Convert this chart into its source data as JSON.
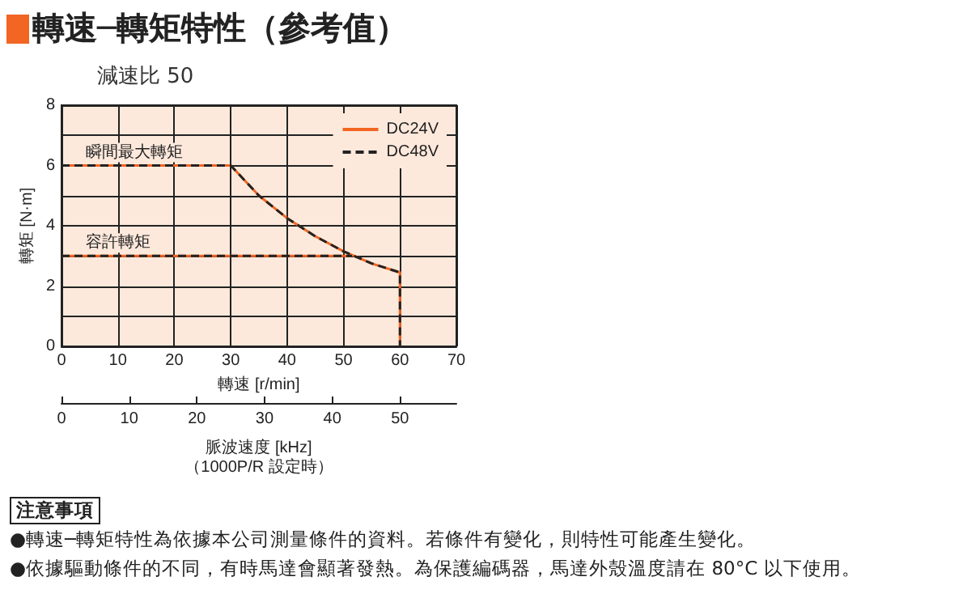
{
  "chart_data": {
    "type": "line",
    "title": "轉速─轉矩特性（參考值）",
    "subtitle": "減速比 50",
    "xlabel": "轉速 [r/min]",
    "ylabel": "轉矩 [N·m]",
    "x2label": "脈波速度 [kHz]\n（1000P/R 設定時）",
    "xlim": [
      0,
      70
    ],
    "xticks": [
      0,
      10,
      20,
      30,
      40,
      50,
      60,
      70
    ],
    "x2lim": [
      0,
      58.33
    ],
    "x2ticks": [
      0,
      10,
      20,
      30,
      40,
      50
    ],
    "ylim": [
      0,
      8
    ],
    "yticks": [
      0,
      {
        "value": 1,
        "label": null
      },
      2,
      {
        "value": 3,
        "label": null
      },
      4,
      {
        "value": 5,
        "label": null
      },
      6,
      {
        "value": 7,
        "label": null
      },
      8
    ],
    "series": [
      {
        "name": "DC24V",
        "color": "#f26522",
        "line_style": "solid",
        "x": [
          0,
          30,
          35,
          40,
          45,
          50,
          55,
          60,
          60
        ],
        "values": [
          6,
          6,
          5,
          4.25,
          3.65,
          3.15,
          2.75,
          2.45,
          0
        ]
      },
      {
        "color": "#f26522",
        "line_style": "solid",
        "x": [
          0,
          51.5
        ],
        "values": [
          3,
          3
        ]
      },
      {
        "name": "DC48V",
        "color": "#222222",
        "line_style": "dashed",
        "x": [
          0,
          30,
          35,
          40,
          45,
          50,
          55,
          60,
          60
        ],
        "values": [
          6,
          6,
          5,
          4.25,
          3.65,
          3.15,
          2.75,
          2.45,
          0
        ]
      },
      {
        "color": "#222222",
        "line_style": "dashed",
        "x": [
          0,
          51.5
        ],
        "values": [
          3,
          3
        ]
      }
    ],
    "annotations": [
      {
        "text": "瞬間最大轉矩",
        "x": 4,
        "y": 6
      },
      {
        "text": "容許轉矩",
        "x": 4,
        "y": 3
      },
      "注意事項",
      "●轉速─轉矩特性為依據本公司測量條件的資料。若條件有變化，則特性可能產生變化。",
      "●依據驅動條件的不同，有時馬達會顯著發熱。為保護編碼器，馬達外殼溫度請在 80°C 以下使用。"
    ],
    "grid": true,
    "legend": "top right",
    "marker": "none"
  }
}
